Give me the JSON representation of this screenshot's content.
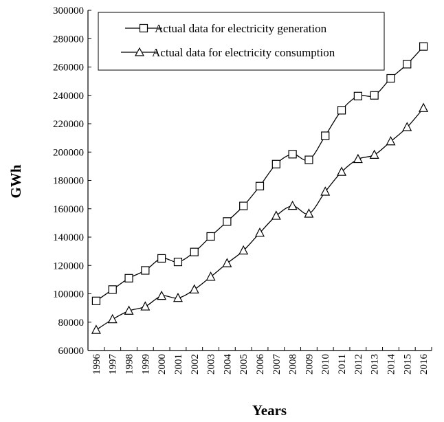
{
  "chart_data": {
    "type": "line",
    "title": "",
    "xlabel": "Years",
    "ylabel": "GWh",
    "x": [
      "1996",
      "1997",
      "1998",
      "1999",
      "2000",
      "2001",
      "2002",
      "2003",
      "2004",
      "2005",
      "2006",
      "2007",
      "2008",
      "2009",
      "2010",
      "2011",
      "2012",
      "2013",
      "2014",
      "2015",
      "2016"
    ],
    "ylim": [
      60000,
      300000
    ],
    "yticks": [
      60000,
      80000,
      100000,
      120000,
      140000,
      160000,
      180000,
      200000,
      220000,
      240000,
      260000,
      280000,
      300000
    ],
    "grid": false,
    "legend_position": "top-left",
    "series": [
      {
        "name": "Actual data for electricity generation",
        "marker": "square",
        "color": "#000000",
        "values": [
          95000,
          103000,
          111000,
          116500,
          125000,
          122500,
          129500,
          140500,
          151000,
          162000,
          176000,
          191500,
          198500,
          194500,
          211500,
          229500,
          239500,
          240000,
          252000,
          262000,
          274500
        ]
      },
      {
        "name": "Actual data for electricity consumption",
        "marker": "triangle",
        "color": "#000000",
        "values": [
          74500,
          82000,
          88000,
          91000,
          98500,
          97000,
          103000,
          112000,
          121500,
          130500,
          143000,
          155000,
          162000,
          156500,
          172000,
          186000,
          195000,
          198000,
          207500,
          217500,
          231000
        ]
      }
    ]
  }
}
